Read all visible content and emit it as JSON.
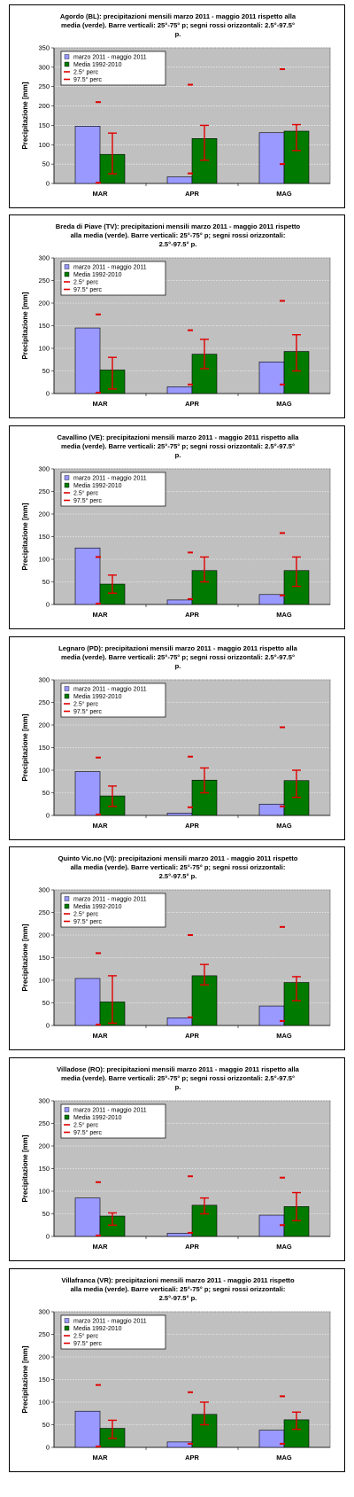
{
  "common": {
    "ylabel": "Precipitazione [mm]",
    "categories": [
      "MAR",
      "APR",
      "MAG"
    ],
    "yticks": [
      0,
      50,
      100,
      150,
      200,
      250,
      300,
      350
    ],
    "legend": [
      "marzo 2011 - maggio 2011",
      "Media 1992-2010",
      "2.5° perc",
      "97.5° perc"
    ],
    "colors": {
      "obs": "#9999ff",
      "mean": "#007a00",
      "perc": "#e00000",
      "plot_bg": "#c0c0c0"
    }
  },
  "chart_data": [
    {
      "type": "bar",
      "title": "Agordo (BL): precipitazioni mensili marzo 2011 - maggio 2011 rispetto alla media (verde). Barre verticali: 25°-75° p; segni rossi orizzontali: 2.5°-97.5° p.",
      "categories": [
        "MAR",
        "APR",
        "MAG"
      ],
      "ylim": [
        0,
        350
      ],
      "series": [
        {
          "name": "marzo 2011 - maggio 2011",
          "values": [
            148,
            17,
            131
          ]
        },
        {
          "name": "Media 1992-2010",
          "values": [
            75,
            116,
            135
          ]
        }
      ],
      "err_25_75": [
        [
          25,
          130
        ],
        [
          60,
          150
        ],
        [
          85,
          152
        ]
      ],
      "perc_2_5": [
        2,
        26,
        50
      ],
      "perc_97_5": [
        210,
        255,
        295
      ]
    },
    {
      "type": "bar",
      "title": "Breda di Piave (TV): precipitazioni mensili marzo 2011 - maggio 2011 rispetto alla media (verde). Barre verticali: 25°-75° p; segni rossi orizzontali: 2.5°-97.5° p.",
      "categories": [
        "MAR",
        "APR",
        "MAG"
      ],
      "ylim": [
        0,
        300
      ],
      "series": [
        {
          "name": "marzo 2011 - maggio 2011",
          "values": [
            145,
            15,
            70
          ]
        },
        {
          "name": "Media 1992-2010",
          "values": [
            52,
            87,
            93
          ]
        }
      ],
      "err_25_75": [
        [
          10,
          80
        ],
        [
          55,
          120
        ],
        [
          50,
          130
        ]
      ],
      "perc_2_5": [
        2,
        20,
        20
      ],
      "perc_97_5": [
        175,
        140,
        205
      ]
    },
    {
      "type": "bar",
      "title": "Cavallino (VE): precipitazioni mensili marzo 2011 - maggio 2011 rispetto alla media (verde). Barre verticali: 25°-75° p; segni rossi orizzontali: 2.5°-97.5° p.",
      "categories": [
        "MAR",
        "APR",
        "MAG"
      ],
      "ylim": [
        0,
        300
      ],
      "series": [
        {
          "name": "marzo 2011 - maggio 2011",
          "values": [
            125,
            10,
            22
          ]
        },
        {
          "name": "Media 1992-2010",
          "values": [
            45,
            75,
            75
          ]
        }
      ],
      "err_25_75": [
        [
          25,
          65
        ],
        [
          50,
          105
        ],
        [
          40,
          105
        ]
      ],
      "perc_2_5": [
        2,
        12,
        20
      ],
      "perc_97_5": [
        105,
        115,
        158
      ]
    },
    {
      "type": "bar",
      "title": "Legnaro (PD): precipitazioni mensili marzo 2011 - maggio 2011 rispetto alla media (verde). Barre verticali: 25°-75° p; segni rossi orizzontali: 2.5°-97.5° p.",
      "categories": [
        "MAR",
        "APR",
        "MAG"
      ],
      "ylim": [
        0,
        300
      ],
      "series": [
        {
          "name": "marzo 2011 - maggio 2011",
          "values": [
            97,
            5,
            25
          ]
        },
        {
          "name": "Media 1992-2010",
          "values": [
            43,
            78,
            77
          ]
        }
      ],
      "err_25_75": [
        [
          20,
          65
        ],
        [
          50,
          105
        ],
        [
          40,
          100
        ]
      ],
      "perc_2_5": [
        2,
        18,
        20
      ],
      "perc_97_5": [
        128,
        130,
        195
      ]
    },
    {
      "type": "bar",
      "title": "Quinto Vic.no (VI): precipitazioni mensili marzo 2011 - maggio 2011 rispetto alla media (verde). Barre verticali: 25°-75° p; segni rossi orizzontali: 2.5°-97.5° p.",
      "categories": [
        "MAR",
        "APR",
        "MAG"
      ],
      "ylim": [
        0,
        300
      ],
      "series": [
        {
          "name": "marzo 2011 - maggio 2011",
          "values": [
            104,
            17,
            43
          ]
        },
        {
          "name": "Media 1992-2010",
          "values": [
            52,
            110,
            95
          ]
        }
      ],
      "err_25_75": [
        [
          5,
          110
        ],
        [
          90,
          135
        ],
        [
          55,
          108
        ]
      ],
      "perc_2_5": [
        2,
        18,
        10
      ],
      "perc_97_5": [
        160,
        200,
        218
      ]
    },
    {
      "type": "bar",
      "title": "Villadose (RO): precipitazioni mensili marzo 2011 - maggio 2011 rispetto alla media (verde). Barre verticali: 25°-75° p; segni rossi orizzontali: 2.5°-97.5° p.",
      "categories": [
        "MAR",
        "APR",
        "MAG"
      ],
      "ylim": [
        0,
        300
      ],
      "series": [
        {
          "name": "marzo 2011 - maggio 2011",
          "values": [
            85,
            7,
            47
          ]
        },
        {
          "name": "Media 1992-2010",
          "values": [
            45,
            69,
            66
          ]
        }
      ],
      "err_25_75": [
        [
          25,
          52
        ],
        [
          50,
          85
        ],
        [
          35,
          97
        ]
      ],
      "perc_2_5": [
        2,
        8,
        25
      ],
      "perc_97_5": [
        120,
        133,
        130
      ]
    },
    {
      "type": "bar",
      "title": "Villafranca (VR): precipitazioni mensili marzo 2011 - maggio 2011 rispetto alla media (verde). Barre verticali: 25°-75° p; segni rossi orizzontali: 2.5°-97.5° p.",
      "categories": [
        "MAR",
        "APR",
        "MAG"
      ],
      "ylim": [
        0,
        300
      ],
      "series": [
        {
          "name": "marzo 2011 - maggio 2011",
          "values": [
            80,
            12,
            38
          ]
        },
        {
          "name": "Media 1992-2010",
          "values": [
            42,
            73,
            61
          ]
        }
      ],
      "err_25_75": [
        [
          20,
          60
        ],
        [
          50,
          100
        ],
        [
          40,
          78
        ]
      ],
      "perc_2_5": [
        2,
        8,
        8
      ],
      "perc_97_5": [
        138,
        122,
        113
      ]
    }
  ]
}
